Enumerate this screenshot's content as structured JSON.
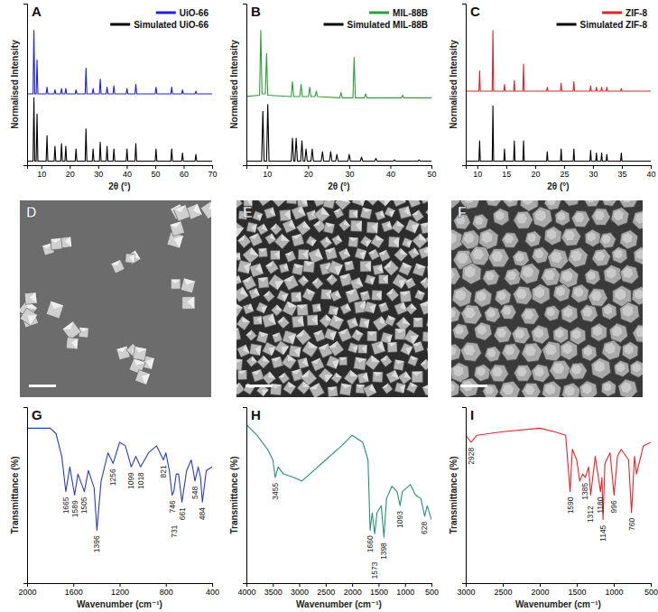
{
  "chart_data": [
    {
      "type": "line",
      "title": "A",
      "x_label": "2θ (°)",
      "y_label": "Normalised Intensity",
      "xlim": [
        5,
        70
      ],
      "xticks": [
        10,
        20,
        30,
        40,
        50,
        60,
        70
      ],
      "ylim": [
        0,
        120
      ],
      "tick_labels": "x",
      "grid": false,
      "legend": "top-right",
      "x": [
        5,
        7.1,
        7.4,
        7.7,
        8.2,
        8.5,
        8.8,
        11.7,
        12.0,
        12.3,
        14.5,
        14.8,
        15.1,
        16.8,
        17.1,
        17.4,
        18.3,
        18.6,
        18.9,
        21.9,
        22.2,
        22.5,
        25.4,
        25.7,
        26.0,
        27.9,
        28.2,
        28.5,
        30.4,
        30.7,
        31.0,
        32.8,
        33.1,
        33.4,
        35.2,
        35.5,
        35.8,
        39.8,
        40.1,
        40.4,
        42.9,
        43.2,
        43.5,
        50.0,
        50.3,
        50.6,
        55.5,
        55.8,
        56.1,
        59.3,
        59.6,
        59.9,
        64.0,
        64.3,
        64.6,
        70
      ],
      "series": [
        {
          "name": "UiO-66",
          "color": "#1f22d8",
          "values": [
            53,
            53,
            100,
            53,
            53,
            78,
            53,
            53,
            58,
            53,
            53,
            56,
            53,
            53,
            57,
            53,
            53,
            57,
            53,
            53,
            56,
            53,
            53,
            72,
            53,
            53,
            57,
            53,
            53,
            64,
            53,
            53,
            58,
            53,
            53,
            59,
            53,
            53,
            57,
            53,
            53,
            60,
            53,
            53,
            58,
            53,
            53,
            58,
            53,
            53,
            56,
            53,
            53,
            55,
            53,
            53
          ]
        },
        {
          "name": "Simulated UiO-66",
          "color": "#000000",
          "values": [
            3,
            3,
            50,
            3,
            3,
            38,
            3,
            3,
            22,
            3,
            3,
            14,
            3,
            3,
            16,
            3,
            3,
            14,
            3,
            3,
            12,
            3,
            3,
            27,
            3,
            3,
            12,
            3,
            3,
            17,
            3,
            3,
            14,
            3,
            3,
            12,
            3,
            3,
            12,
            3,
            3,
            16,
            3,
            3,
            12,
            3,
            3,
            12,
            3,
            3,
            9,
            3,
            3,
            8,
            3,
            3
          ]
        }
      ]
    },
    {
      "type": "line",
      "title": "B",
      "x_label": "2θ (°)",
      "y_label": "Normalised Intensity",
      "xlim": [
        5,
        50
      ],
      "xticks": [
        10,
        20,
        30,
        40,
        50
      ],
      "ylim": [
        0,
        120
      ],
      "tick_labels": "x",
      "grid": false,
      "legend": "top-right",
      "series": [
        {
          "name": "MIL-88B",
          "color": "#2e9e3a",
          "x": [
            5,
            8.2,
            8.5,
            8.8,
            9.6,
            9.9,
            10.2,
            15.9,
            16.2,
            16.5,
            18.0,
            18.3,
            18.6,
            20.1,
            20.4,
            20.7,
            21.7,
            22.0,
            22.3,
            27.7,
            28.0,
            28.3,
            30.9,
            31.2,
            31.5,
            33.7,
            34.0,
            34.3,
            42.7,
            43.0,
            43.3,
            50
          ],
          "values": [
            51,
            52,
            100,
            53,
            53,
            83,
            52,
            51,
            62,
            51,
            51,
            60,
            51,
            51,
            58,
            51,
            51,
            55,
            51,
            50,
            54,
            50,
            50,
            80,
            50,
            50,
            53,
            50,
            50,
            52,
            50,
            50
          ]
        },
        {
          "name": "Simulated MIL-88B",
          "color": "#000000",
          "x": [
            5,
            8.7,
            9.0,
            9.3,
            9.9,
            10.2,
            10.5,
            15.9,
            16.2,
            16.5,
            16.8,
            17.1,
            17.4,
            18.2,
            18.5,
            18.8,
            19.2,
            19.5,
            19.8,
            20.7,
            21.0,
            21.3,
            23.2,
            23.5,
            23.8,
            25.2,
            25.5,
            25.8,
            26.7,
            27.0,
            27.3,
            29.7,
            30.0,
            30.3,
            32.7,
            33.0,
            33.3,
            36.2,
            36.5,
            36.8,
            40.7,
            41.0,
            41.3,
            46.7,
            47.0,
            47.3,
            50
          ],
          "values": [
            3,
            3,
            40,
            3,
            3,
            45,
            3,
            3,
            20,
            3,
            3,
            20,
            3,
            3,
            18,
            3,
            3,
            12,
            3,
            3,
            12,
            3,
            3,
            10,
            3,
            3,
            10,
            3,
            3,
            8,
            3,
            3,
            8,
            3,
            3,
            6,
            3,
            3,
            5,
            3,
            3,
            4,
            3,
            3,
            4,
            3,
            3
          ]
        }
      ]
    },
    {
      "type": "line",
      "title": "C",
      "x_label": "2θ (°)",
      "y_label": "Normalised Intensity",
      "xlim": [
        8,
        40
      ],
      "xticks": [
        10,
        15,
        20,
        25,
        30,
        35,
        40
      ],
      "ylim": [
        0,
        120
      ],
      "tick_labels": "x",
      "grid": false,
      "legend": "top-right",
      "x": [
        8,
        10.28,
        10.4,
        10.52,
        12.58,
        12.7,
        12.82,
        14.58,
        14.7,
        14.82,
        16.28,
        16.4,
        16.52,
        17.88,
        18.0,
        18.12,
        21.98,
        22.1,
        22.22,
        24.38,
        24.5,
        24.62,
        26.58,
        26.7,
        26.82,
        29.48,
        29.6,
        29.72,
        30.48,
        30.6,
        30.72,
        31.38,
        31.5,
        31.62,
        32.28,
        32.4,
        32.52,
        34.78,
        34.9,
        35.02,
        40
      ],
      "series": [
        {
          "name": "ZIF-8",
          "color": "#d9262c",
          "values": [
            55,
            55,
            70,
            55,
            55,
            100,
            55,
            55,
            60,
            55,
            55,
            63,
            55,
            55,
            75,
            55,
            55,
            58,
            55,
            55,
            61,
            55,
            55,
            62,
            55,
            55,
            59,
            55,
            55,
            58,
            55,
            55,
            58,
            55,
            55,
            58,
            55,
            55,
            57,
            55,
            55
          ]
        },
        {
          "name": "Simulated ZIF-8",
          "color": "#000000",
          "values": [
            3,
            3,
            18,
            3,
            3,
            44,
            3,
            3,
            12,
            3,
            3,
            18,
            3,
            3,
            18,
            3,
            3,
            10,
            3,
            3,
            12,
            3,
            3,
            12,
            3,
            3,
            11,
            3,
            3,
            9,
            3,
            3,
            9,
            3,
            3,
            8,
            3,
            3,
            9,
            3,
            3
          ]
        }
      ]
    },
    {
      "type": "line",
      "title": "G",
      "x_label": "Wavenumber (cm⁻¹)",
      "y_label": "Transmittance (%)",
      "xlim": [
        2000,
        400
      ],
      "xticks": [
        2000,
        1600,
        1200,
        800,
        400
      ],
      "ylim": [
        0,
        100
      ],
      "tick_labels": "x",
      "grid": false,
      "x": [
        2000,
        1800,
        1750,
        1700,
        1665,
        1630,
        1589,
        1560,
        1505,
        1470,
        1420,
        1396,
        1360,
        1300,
        1256,
        1200,
        1150,
        1099,
        1060,
        1018,
        950,
        880,
        821,
        800,
        770,
        746,
        731,
        710,
        690,
        661,
        620,
        580,
        548,
        520,
        500,
        484,
        450,
        400
      ],
      "series": [
        {
          "color": "#2b3fb5",
          "values": [
            88,
            88,
            85,
            72,
            52,
            66,
            50,
            62,
            52,
            64,
            54,
            30,
            58,
            74,
            68,
            80,
            78,
            66,
            72,
            66,
            74,
            78,
            70,
            74,
            64,
            50,
            52,
            62,
            62,
            46,
            64,
            70,
            58,
            66,
            60,
            46,
            64,
            66
          ]
        }
      ],
      "annotations": [
        {
          "x": 1665,
          "y": 49,
          "text": "1665"
        },
        {
          "x": 1589,
          "y": 47,
          "text": "1589"
        },
        {
          "x": 1505,
          "y": 49,
          "text": "1505"
        },
        {
          "x": 1396,
          "y": 27,
          "text": "1396"
        },
        {
          "x": 1256,
          "y": 65,
          "text": "1256"
        },
        {
          "x": 1099,
          "y": 63,
          "text": "1099"
        },
        {
          "x": 1018,
          "y": 63,
          "text": "1018"
        },
        {
          "x": 821,
          "y": 67,
          "text": "821"
        },
        {
          "x": 746,
          "y": 47,
          "text": "746"
        },
        {
          "x": 731,
          "y": 33,
          "text": "731"
        },
        {
          "x": 661,
          "y": 43,
          "text": "661"
        },
        {
          "x": 548,
          "y": 55,
          "text": "548"
        },
        {
          "x": 484,
          "y": 43,
          "text": "484"
        }
      ]
    },
    {
      "type": "line",
      "title": "H",
      "x_label": "Wavenumber (cm⁻¹)",
      "y_label": "Transmittance (%)",
      "xlim": [
        4000,
        500
      ],
      "xticks": [
        4000,
        3500,
        3000,
        2500,
        2000,
        1500,
        1000,
        500
      ],
      "ylim": [
        0,
        100
      ],
      "tick_labels": "x",
      "grid": false,
      "x": [
        4000,
        3800,
        3600,
        3500,
        3455,
        3400,
        3300,
        3100,
        2950,
        2800,
        2500,
        2200,
        2000,
        1800,
        1700,
        1660,
        1620,
        1573,
        1530,
        1450,
        1398,
        1350,
        1250,
        1150,
        1093,
        1050,
        900,
        800,
        700,
        628,
        580,
        500
      ],
      "series": [
        {
          "color": "#2a8f7a",
          "values": [
            90,
            84,
            76,
            70,
            60,
            66,
            62,
            60,
            58,
            62,
            70,
            78,
            84,
            80,
            70,
            30,
            40,
            28,
            40,
            44,
            26,
            48,
            55,
            52,
            44,
            52,
            56,
            50,
            48,
            38,
            44,
            36
          ]
        }
      ],
      "annotations": [
        {
          "x": 3455,
          "y": 57,
          "text": "3455"
        },
        {
          "x": 1660,
          "y": 27,
          "text": "1660"
        },
        {
          "x": 1573,
          "y": 12,
          "text": "1573"
        },
        {
          "x": 1398,
          "y": 23,
          "text": "1398"
        },
        {
          "x": 1093,
          "y": 41,
          "text": "1093"
        },
        {
          "x": 628,
          "y": 35,
          "text": "628"
        }
      ]
    },
    {
      "type": "line",
      "title": "I",
      "x_label": "Wavenumber (cm⁻¹)",
      "y_label": "Transmittance (%)",
      "xlim": [
        3000,
        500
      ],
      "xticks": [
        3000,
        2500,
        2000,
        1500,
        1000,
        500
      ],
      "ylim": [
        0,
        100
      ],
      "tick_labels": "x",
      "grid": false,
      "x": [
        3000,
        2928,
        2850,
        2500,
        2000,
        1800,
        1650,
        1590,
        1560,
        1500,
        1460,
        1420,
        1385,
        1340,
        1312,
        1250,
        1180,
        1160,
        1145,
        1120,
        1050,
        996,
        950,
        900,
        800,
        760,
        720,
        693,
        600,
        500
      ],
      "series": [
        {
          "color": "#e0262c",
          "values": [
            84,
            80,
            84,
            86,
            88,
            86,
            84,
            52,
            76,
            70,
            58,
            62,
            60,
            66,
            50,
            72,
            52,
            60,
            36,
            68,
            74,
            50,
            72,
            76,
            70,
            40,
            72,
            62,
            78,
            80
          ]
        }
      ],
      "annotations": [
        {
          "x": 2928,
          "y": 77,
          "text": "2928"
        },
        {
          "x": 1590,
          "y": 49,
          "text": "1590"
        },
        {
          "x": 1385,
          "y": 57,
          "text": "1385"
        },
        {
          "x": 1312,
          "y": 44,
          "text": "1312"
        },
        {
          "x": 1180,
          "y": 49,
          "text": "1180"
        },
        {
          "x": 1145,
          "y": 33,
          "text": "1145"
        },
        {
          "x": 996,
          "y": 47,
          "text": "996"
        },
        {
          "x": 760,
          "y": 37,
          "text": "760"
        }
      ]
    }
  ],
  "images": [
    {
      "label": "D"
    },
    {
      "label": "E"
    },
    {
      "label": "F"
    }
  ]
}
